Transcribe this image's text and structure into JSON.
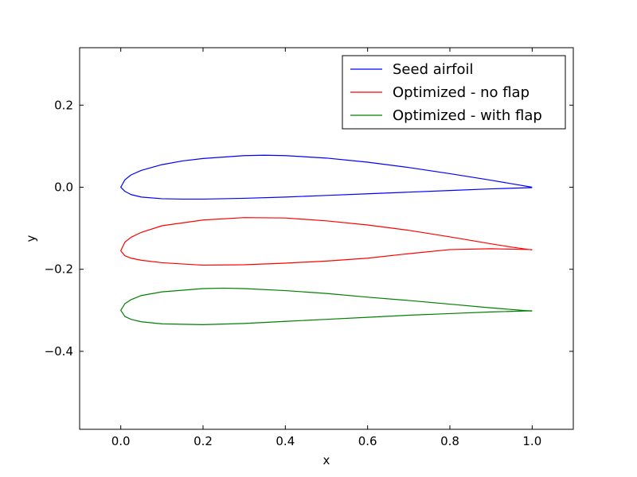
{
  "chart_data": {
    "type": "line",
    "title": "",
    "xlabel": "x",
    "ylabel": "y",
    "xlim": [
      -0.1,
      1.1
    ],
    "ylim": [
      -0.59,
      0.34
    ],
    "xticks": [
      0.0,
      0.2,
      0.4,
      0.6,
      0.8,
      1.0
    ],
    "yticks": [
      0.2,
      0.0,
      -0.2,
      -0.4
    ],
    "xtick_labels": [
      "0.0",
      "0.2",
      "0.4",
      "0.6",
      "0.8",
      "1.0"
    ],
    "ytick_labels": [
      "0.2",
      "0.0",
      "−0.2",
      "−0.4"
    ],
    "grid": false,
    "legend_position": "top-right",
    "series": [
      {
        "name": "Seed airfoil",
        "color": "#0000ff",
        "x": [
          1.0,
          0.9,
          0.8,
          0.7,
          0.6,
          0.5,
          0.4,
          0.35,
          0.3,
          0.2,
          0.15,
          0.1,
          0.05,
          0.025,
          0.01,
          0.0,
          0.01,
          0.025,
          0.05,
          0.1,
          0.15,
          0.2,
          0.3,
          0.4,
          0.5,
          0.6,
          0.7,
          0.8,
          0.9,
          1.0
        ],
        "y": [
          0.0,
          0.017,
          0.033,
          0.048,
          0.061,
          0.071,
          0.077,
          0.078,
          0.077,
          0.07,
          0.064,
          0.055,
          0.041,
          0.03,
          0.018,
          0.0,
          -0.01,
          -0.018,
          -0.024,
          -0.028,
          -0.029,
          -0.029,
          -0.027,
          -0.024,
          -0.02,
          -0.016,
          -0.012,
          -0.008,
          -0.004,
          -0.001
        ]
      },
      {
        "name": "Optimized - no flap",
        "color": "#ff0000",
        "x": [
          1.0,
          0.95,
          0.9,
          0.8,
          0.7,
          0.6,
          0.5,
          0.4,
          0.3,
          0.2,
          0.1,
          0.05,
          0.025,
          0.01,
          0.0,
          0.01,
          0.025,
          0.05,
          0.1,
          0.2,
          0.3,
          0.4,
          0.5,
          0.6,
          0.7,
          0.8,
          0.9,
          0.95,
          1.0
        ],
        "y": [
          -0.153,
          -0.146,
          -0.138,
          -0.121,
          -0.105,
          -0.092,
          -0.082,
          -0.075,
          -0.074,
          -0.08,
          -0.094,
          -0.11,
          -0.122,
          -0.134,
          -0.155,
          -0.167,
          -0.173,
          -0.178,
          -0.184,
          -0.19,
          -0.189,
          -0.185,
          -0.18,
          -0.173,
          -0.162,
          -0.152,
          -0.15,
          -0.151,
          -0.152
        ]
      },
      {
        "name": "Optimized - with flap",
        "color": "#008000",
        "x": [
          1.0,
          0.9,
          0.8,
          0.7,
          0.6,
          0.5,
          0.4,
          0.3,
          0.25,
          0.2,
          0.1,
          0.05,
          0.025,
          0.01,
          0.0,
          0.01,
          0.025,
          0.05,
          0.1,
          0.2,
          0.3,
          0.4,
          0.5,
          0.6,
          0.7,
          0.8,
          0.9,
          1.0
        ],
        "y": [
          -0.302,
          -0.294,
          -0.285,
          -0.276,
          -0.268,
          -0.259,
          -0.252,
          -0.247,
          -0.246,
          -0.247,
          -0.255,
          -0.264,
          -0.274,
          -0.284,
          -0.3,
          -0.315,
          -0.322,
          -0.328,
          -0.333,
          -0.335,
          -0.332,
          -0.327,
          -0.322,
          -0.317,
          -0.312,
          -0.308,
          -0.304,
          -0.301
        ]
      }
    ]
  }
}
